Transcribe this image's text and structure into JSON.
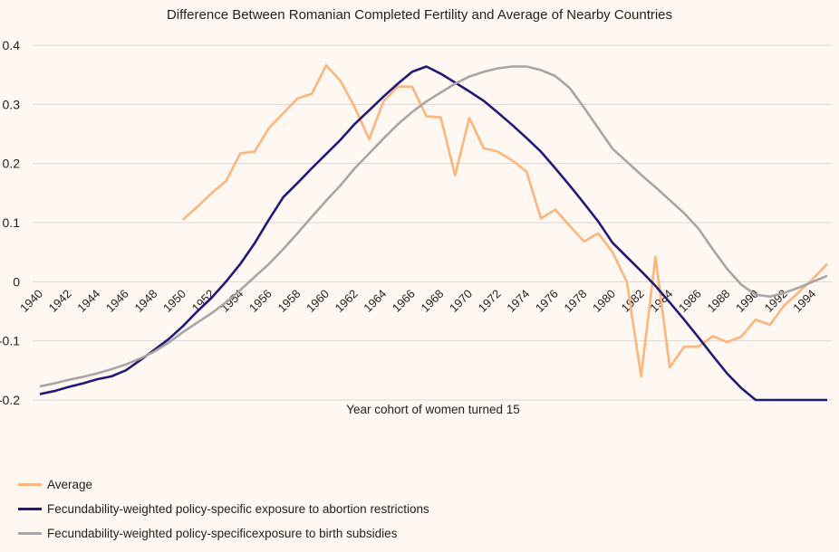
{
  "chart_data": {
    "type": "line",
    "title": "Difference Between Romanian Completed Fertility and Average of Nearby Countries",
    "xlabel": "Year cohort of women turned 15",
    "ylabel": "",
    "xlim": [
      1940,
      1995
    ],
    "ylim": [
      -0.2,
      0.4
    ],
    "yticks": [
      "0.4",
      "0.3",
      "0.2",
      "0.1",
      "0",
      "-0.1",
      "-0.2"
    ],
    "xticks": [
      "1940",
      "1942",
      "1944",
      "1946",
      "1948",
      "1950",
      "1952",
      "1954",
      "1956",
      "1958",
      "1960",
      "1962",
      "1964",
      "1966",
      "1968",
      "1970",
      "1972",
      "1974",
      "1976",
      "1978",
      "1980",
      "1982",
      "1984",
      "1986",
      "1988",
      "1990",
      "1992",
      "1994"
    ],
    "grid": true,
    "legend_position": "bottom-left",
    "series": [
      {
        "name": "Average",
        "color": "#fdb57c",
        "x_start": 1950,
        "values": [
          0.105,
          0.127,
          0.15,
          0.17,
          0.217,
          0.22,
          0.26,
          0.285,
          0.31,
          0.318,
          0.366,
          0.34,
          0.295,
          0.241,
          0.305,
          0.33,
          0.33,
          0.28,
          0.278,
          0.18,
          0.277,
          0.226,
          0.22,
          0.205,
          0.186,
          0.107,
          0.122,
          0.095,
          0.068,
          0.082,
          0.05,
          0.0,
          -0.16,
          0.042,
          -0.145,
          -0.11,
          -0.11,
          -0.092,
          -0.102,
          -0.093,
          -0.064,
          -0.073,
          -0.04,
          -0.018,
          0.005,
          0.03
        ]
      },
      {
        "name": "Fecundability-weighted policy-specific exposure to abortion restrictions",
        "color": "#1f1a78",
        "x_start": 1940,
        "values": [
          -0.19,
          -0.185,
          -0.178,
          -0.172,
          -0.165,
          -0.16,
          -0.15,
          -0.133,
          -0.115,
          -0.097,
          -0.075,
          -0.05,
          -0.027,
          0.0,
          0.03,
          0.065,
          0.105,
          0.143,
          0.167,
          0.192,
          0.216,
          0.24,
          0.267,
          0.29,
          0.313,
          0.335,
          0.355,
          0.364,
          0.352,
          0.337,
          0.322,
          0.306,
          0.286,
          0.265,
          0.243,
          0.22,
          0.192,
          0.163,
          0.133,
          0.102,
          0.066,
          0.042,
          0.018,
          -0.007,
          -0.035,
          -0.064,
          -0.094,
          -0.125,
          -0.155,
          -0.18,
          -0.2,
          -0.2,
          -0.2,
          -0.2,
          -0.2,
          -0.2
        ]
      },
      {
        "name": "Fecundability-weighted policy-specificexposure to birth subsidies",
        "color": "#a6a6a6",
        "x_start": 1940,
        "values": [
          -0.177,
          -0.172,
          -0.166,
          -0.161,
          -0.155,
          -0.148,
          -0.14,
          -0.13,
          -0.118,
          -0.103,
          -0.085,
          -0.069,
          -0.053,
          -0.035,
          -0.014,
          0.008,
          0.03,
          0.055,
          0.082,
          0.11,
          0.137,
          0.163,
          0.192,
          0.217,
          0.242,
          0.266,
          0.287,
          0.305,
          0.32,
          0.335,
          0.347,
          0.355,
          0.361,
          0.364,
          0.364,
          0.358,
          0.348,
          0.328,
          0.295,
          0.26,
          0.225,
          0.203,
          0.181,
          0.16,
          0.138,
          0.116,
          0.09,
          0.055,
          0.022,
          -0.005,
          -0.022,
          -0.025,
          -0.019,
          -0.01,
          0.0,
          0.01
        ]
      }
    ]
  }
}
